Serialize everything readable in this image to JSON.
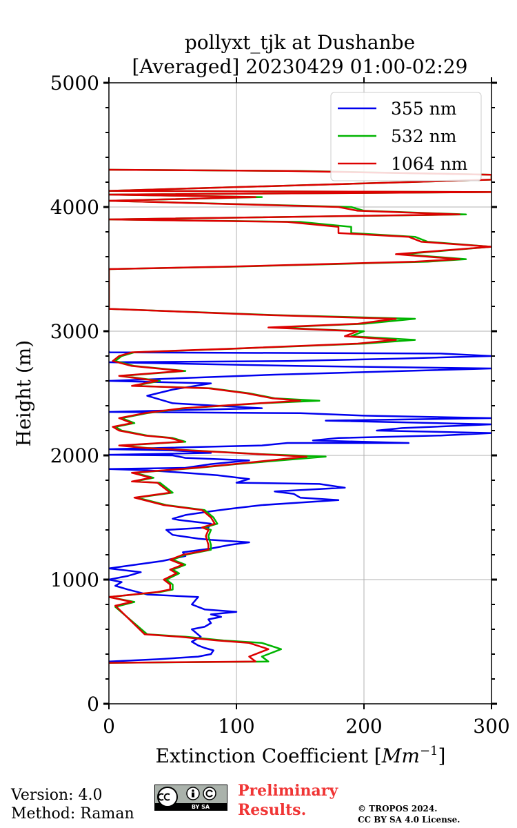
{
  "chart_data": {
    "type": "line",
    "title_line1": "pollyxt_tjk at Dushanbe",
    "title_line2": "[Averaged] 20230429 01:00-02:29",
    "xlabel_main": "Extinction Coefficient [",
    "xlabel_unit": "Mm",
    "xlabel_exp": "−1",
    "xlabel_close": "]",
    "ylabel": "Height (m)",
    "xlim": [
      0,
      300
    ],
    "ylim": [
      0,
      5000
    ],
    "xticks": [
      0,
      100,
      200,
      300
    ],
    "xtick_labels": [
      "0",
      "100",
      "200",
      "300"
    ],
    "yticks": [
      0,
      1000,
      2000,
      3000,
      4000,
      5000
    ],
    "ytick_labels": [
      "0",
      "1000",
      "2000",
      "3000",
      "4000",
      "5000"
    ],
    "grid": true,
    "legend_position": "top-right",
    "series": [
      {
        "name": "355 nm",
        "color": "#0000ee",
        "points": [
          [
            0,
            340
          ],
          [
            40,
            360
          ],
          [
            70,
            380
          ],
          [
            80,
            400
          ],
          [
            82,
            430
          ],
          [
            75,
            450
          ],
          [
            70,
            470
          ],
          [
            65,
            500
          ],
          [
            72,
            540
          ],
          [
            65,
            600
          ],
          [
            75,
            620
          ],
          [
            80,
            650
          ],
          [
            78,
            680
          ],
          [
            88,
            700
          ],
          [
            80,
            720
          ],
          [
            100,
            740
          ],
          [
            75,
            760
          ],
          [
            65,
            800
          ],
          [
            70,
            860
          ],
          [
            50,
            870
          ],
          [
            30,
            880
          ],
          [
            15,
            920
          ],
          [
            5,
            950
          ],
          [
            10,
            980
          ],
          [
            0,
            1000
          ],
          [
            15,
            1030
          ],
          [
            25,
            1060
          ],
          [
            0,
            1090
          ],
          [
            42,
            1150
          ],
          [
            60,
            1190
          ],
          [
            58,
            1220
          ],
          [
            80,
            1250
          ],
          [
            95,
            1280
          ],
          [
            110,
            1300
          ],
          [
            80,
            1320
          ],
          [
            70,
            1330
          ],
          [
            50,
            1360
          ],
          [
            45,
            1400
          ],
          [
            78,
            1420
          ],
          [
            80,
            1450
          ],
          [
            55,
            1480
          ],
          [
            50,
            1490
          ],
          [
            60,
            1520
          ],
          [
            80,
            1550
          ],
          [
            95,
            1570
          ],
          [
            120,
            1600
          ],
          [
            150,
            1620
          ],
          [
            180,
            1640
          ],
          [
            150,
            1660
          ],
          [
            145,
            1690
          ],
          [
            130,
            1710
          ],
          [
            185,
            1740
          ],
          [
            165,
            1770
          ],
          [
            100,
            1780
          ],
          [
            110,
            1810
          ],
          [
            85,
            1840
          ],
          [
            60,
            1860
          ],
          [
            30,
            1880
          ],
          [
            0,
            1890
          ],
          [
            60,
            1900
          ],
          [
            80,
            1930
          ],
          [
            110,
            1960
          ],
          [
            60,
            1980
          ],
          [
            50,
            2000
          ],
          [
            0,
            2005
          ],
          [
            80,
            2020
          ],
          [
            50,
            2040
          ],
          [
            0,
            2050
          ],
          [
            120,
            2080
          ],
          [
            140,
            2100
          ],
          [
            235,
            2100
          ],
          [
            160,
            2120
          ],
          [
            180,
            2140
          ],
          [
            260,
            2160
          ],
          [
            300,
            2180
          ],
          [
            210,
            2200
          ],
          [
            230,
            2220
          ],
          [
            300,
            2250
          ],
          [
            170,
            2280
          ],
          [
            300,
            2300
          ],
          [
            200,
            2320
          ],
          [
            150,
            2340
          ],
          [
            0,
            2350
          ],
          [
            120,
            2380
          ],
          [
            50,
            2420
          ],
          [
            30,
            2480
          ],
          [
            50,
            2530
          ],
          [
            80,
            2580
          ],
          [
            0,
            2600
          ],
          [
            130,
            2650
          ],
          [
            300,
            2700
          ],
          [
            150,
            2720
          ],
          [
            0,
            2750
          ],
          [
            140,
            2760
          ],
          [
            230,
            2780
          ],
          [
            300,
            2800
          ],
          [
            260,
            2820
          ],
          [
            0,
            2830
          ],
          [
            0,
            2840
          ]
        ]
      },
      {
        "name": "532 nm",
        "color": "#00b400",
        "points": [
          [
            0,
            330
          ],
          [
            125,
            340
          ],
          [
            120,
            380
          ],
          [
            135,
            440
          ],
          [
            120,
            490
          ],
          [
            90,
            510
          ],
          [
            60,
            540
          ],
          [
            30,
            560
          ],
          [
            5,
            780
          ],
          [
            20,
            820
          ],
          [
            0,
            860
          ],
          [
            40,
            900
          ],
          [
            50,
            920
          ],
          [
            50,
            960
          ],
          [
            45,
            1000
          ],
          [
            55,
            1050
          ],
          [
            50,
            1080
          ],
          [
            60,
            1120
          ],
          [
            50,
            1160
          ],
          [
            60,
            1200
          ],
          [
            80,
            1240
          ],
          [
            80,
            1280
          ],
          [
            78,
            1350
          ],
          [
            80,
            1400
          ],
          [
            75,
            1420
          ],
          [
            85,
            1450
          ],
          [
            82,
            1500
          ],
          [
            75,
            1560
          ],
          [
            45,
            1600
          ],
          [
            22,
            1660
          ],
          [
            50,
            1700
          ],
          [
            45,
            1740
          ],
          [
            40,
            1780
          ],
          [
            20,
            1790
          ],
          [
            35,
            1820
          ],
          [
            20,
            1860
          ],
          [
            70,
            1900
          ],
          [
            100,
            1930
          ],
          [
            170,
            1990
          ],
          [
            120,
            2010
          ],
          [
            30,
            2060
          ],
          [
            10,
            2080
          ],
          [
            60,
            2110
          ],
          [
            50,
            2140
          ],
          [
            30,
            2160
          ],
          [
            10,
            2200
          ],
          [
            5,
            2230
          ],
          [
            20,
            2260
          ],
          [
            10,
            2300
          ],
          [
            30,
            2340
          ],
          [
            60,
            2380
          ],
          [
            120,
            2420
          ],
          [
            165,
            2440
          ],
          [
            130,
            2460
          ],
          [
            110,
            2500
          ],
          [
            80,
            2540
          ],
          [
            20,
            2560
          ],
          [
            40,
            2600
          ],
          [
            10,
            2640
          ],
          [
            60,
            2680
          ],
          [
            20,
            2720
          ],
          [
            5,
            2760
          ],
          [
            10,
            2800
          ],
          [
            20,
            2830
          ],
          [
            100,
            2860
          ],
          [
            200,
            2900
          ],
          [
            240,
            2930
          ],
          [
            190,
            2960
          ],
          [
            200,
            3000
          ],
          [
            130,
            3030
          ],
          [
            200,
            3060
          ],
          [
            240,
            3100
          ],
          [
            130,
            3130
          ],
          [
            0,
            3180
          ],
          [
            0,
            3500
          ],
          [
            100,
            3520
          ],
          [
            250,
            3560
          ],
          [
            280,
            3580
          ],
          [
            230,
            3620
          ],
          [
            300,
            3680
          ],
          [
            250,
            3720
          ],
          [
            240,
            3760
          ],
          [
            190,
            3790
          ],
          [
            190,
            3840
          ],
          [
            150,
            3880
          ],
          [
            0,
            3900
          ],
          [
            280,
            3940
          ],
          [
            200,
            3970
          ],
          [
            190,
            4000
          ],
          [
            0,
            4050
          ],
          [
            120,
            4080
          ],
          [
            0,
            4100
          ],
          [
            300,
            4120
          ],
          [
            0,
            4130
          ],
          [
            300,
            4220
          ],
          [
            300,
            4260
          ],
          [
            150,
            4290
          ],
          [
            0,
            4300
          ]
        ]
      },
      {
        "name": "1064 nm",
        "color": "#dd0000",
        "points": [
          [
            0,
            330
          ],
          [
            115,
            340
          ],
          [
            110,
            380
          ],
          [
            125,
            440
          ],
          [
            110,
            490
          ],
          [
            85,
            510
          ],
          [
            55,
            540
          ],
          [
            28,
            560
          ],
          [
            5,
            790
          ],
          [
            18,
            820
          ],
          [
            0,
            860
          ],
          [
            38,
            900
          ],
          [
            48,
            920
          ],
          [
            48,
            960
          ],
          [
            43,
            1000
          ],
          [
            53,
            1050
          ],
          [
            48,
            1080
          ],
          [
            58,
            1120
          ],
          [
            48,
            1160
          ],
          [
            58,
            1200
          ],
          [
            78,
            1240
          ],
          [
            78,
            1280
          ],
          [
            76,
            1350
          ],
          [
            78,
            1400
          ],
          [
            73,
            1420
          ],
          [
            83,
            1450
          ],
          [
            80,
            1500
          ],
          [
            73,
            1560
          ],
          [
            43,
            1600
          ],
          [
            20,
            1660
          ],
          [
            48,
            1700
          ],
          [
            43,
            1740
          ],
          [
            38,
            1780
          ],
          [
            18,
            1790
          ],
          [
            33,
            1820
          ],
          [
            18,
            1860
          ],
          [
            68,
            1900
          ],
          [
            98,
            1930
          ],
          [
            155,
            1990
          ],
          [
            118,
            2010
          ],
          [
            28,
            2060
          ],
          [
            8,
            2080
          ],
          [
            58,
            2110
          ],
          [
            48,
            2140
          ],
          [
            28,
            2160
          ],
          [
            8,
            2200
          ],
          [
            3,
            2230
          ],
          [
            18,
            2260
          ],
          [
            8,
            2300
          ],
          [
            28,
            2340
          ],
          [
            58,
            2380
          ],
          [
            118,
            2420
          ],
          [
            150,
            2440
          ],
          [
            128,
            2460
          ],
          [
            108,
            2500
          ],
          [
            78,
            2540
          ],
          [
            18,
            2560
          ],
          [
            38,
            2600
          ],
          [
            8,
            2640
          ],
          [
            58,
            2680
          ],
          [
            18,
            2720
          ],
          [
            3,
            2760
          ],
          [
            8,
            2800
          ],
          [
            18,
            2830
          ],
          [
            98,
            2860
          ],
          [
            195,
            2900
          ],
          [
            225,
            2930
          ],
          [
            185,
            2960
          ],
          [
            195,
            3000
          ],
          [
            125,
            3030
          ],
          [
            195,
            3060
          ],
          [
            225,
            3100
          ],
          [
            125,
            3130
          ],
          [
            0,
            3180
          ],
          [
            0,
            3500
          ],
          [
            95,
            3520
          ],
          [
            240,
            3560
          ],
          [
            275,
            3580
          ],
          [
            225,
            3620
          ],
          [
            300,
            3680
          ],
          [
            245,
            3720
          ],
          [
            235,
            3760
          ],
          [
            180,
            3790
          ],
          [
            180,
            3840
          ],
          [
            140,
            3880
          ],
          [
            0,
            3900
          ],
          [
            275,
            3940
          ],
          [
            195,
            3970
          ],
          [
            180,
            4000
          ],
          [
            0,
            4050
          ],
          [
            115,
            4080
          ],
          [
            0,
            4100
          ],
          [
            300,
            4120
          ],
          [
            0,
            4130
          ],
          [
            300,
            4220
          ],
          [
            300,
            4260
          ],
          [
            140,
            4290
          ],
          [
            0,
            4300
          ]
        ]
      }
    ]
  },
  "footer": {
    "version": "Version: 4.0",
    "method": "Method: Raman",
    "preliminary_line1": "Preliminary",
    "preliminary_line2": "Results.",
    "copyright_line1": "© TROPOS 2024.",
    "copyright_line2": "CC BY SA 4.0 License.",
    "cc_badge_text": "BY   SA"
  }
}
